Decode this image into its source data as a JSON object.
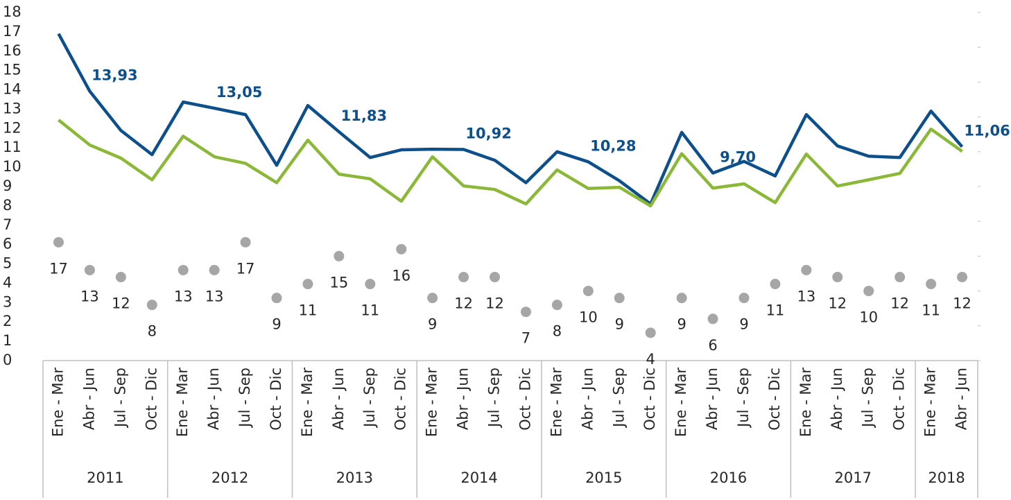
{
  "chart_data": {
    "type": "line",
    "categories": [
      "Ene - Mar",
      "Abr - Jun",
      "Jul - Sep",
      "Oct - Dic",
      "Ene - Mar",
      "Abr - Jun",
      "Jul - Sep",
      "Oct - Dic",
      "Ene - Mar",
      "Abr - Jun",
      "Jul - Sep",
      "Oct - Dic",
      "Ene - Mar",
      "Abr - Jun",
      "Jul - Sep",
      "Oct - Dic",
      "Ene - Mar",
      "Abr - Jun",
      "Jul - Sep",
      "Oct - Dic",
      "Ene - Mar",
      "Abr - Jun",
      "Jul - Sep",
      "Oct - Dic",
      "Ene - Mar",
      "Abr - Jun",
      "Jul - Sep",
      "Oct - Dic",
      "Ene - Mar",
      "Abr - Jun"
    ],
    "groups": [
      {
        "label": "2011",
        "span": 4
      },
      {
        "label": "2012",
        "span": 4
      },
      {
        "label": "2013",
        "span": 4
      },
      {
        "label": "2014",
        "span": 4
      },
      {
        "label": "2015",
        "span": 4
      },
      {
        "label": "2016",
        "span": 4
      },
      {
        "label": "2017",
        "span": 4
      },
      {
        "label": "2018",
        "span": 2
      }
    ],
    "ylim": [
      0,
      18
    ],
    "yticks": [
      0,
      1,
      2,
      3,
      4,
      5,
      6,
      7,
      8,
      9,
      10,
      11,
      12,
      13,
      14,
      15,
      16,
      17,
      18
    ],
    "y2lim": [
      0,
      50
    ],
    "y2ticks": [
      0,
      5,
      10,
      15,
      20,
      25,
      30,
      35,
      40,
      45,
      50
    ],
    "series": [
      {
        "color": "#0d4f8b",
        "mode": "line",
        "values": [
          16.9,
          13.93,
          11.9,
          10.65,
          13.37,
          13.05,
          12.72,
          10.1,
          13.19,
          11.83,
          10.5,
          10.9,
          10.93,
          10.92,
          10.36,
          9.2,
          10.8,
          10.28,
          9.3,
          8.1,
          11.8,
          9.7,
          10.3,
          9.55,
          12.72,
          11.1,
          10.57,
          10.5,
          12.9,
          11.06
        ],
        "value_labels": [
          null,
          "13,93",
          null,
          null,
          null,
          "13,05",
          null,
          null,
          null,
          "11,83",
          null,
          null,
          null,
          "10,92",
          null,
          null,
          null,
          "10,28",
          null,
          null,
          null,
          "9,70",
          null,
          null,
          null,
          null,
          null,
          null,
          null,
          "11,06"
        ]
      },
      {
        "color": "#8cb83a",
        "mode": "line",
        "values": [
          12.44,
          11.15,
          10.47,
          9.35,
          11.6,
          10.54,
          10.2,
          9.2,
          11.4,
          9.64,
          9.4,
          8.24,
          10.54,
          9.03,
          8.85,
          8.1,
          9.86,
          8.9,
          8.96,
          8.0,
          10.7,
          8.92,
          9.14,
          8.17,
          10.68,
          9.03,
          9.35,
          9.68,
          11.97,
          10.82
        ]
      },
      {
        "color": "#a6a6a6",
        "mode": "markers",
        "axis": "y2",
        "values": [
          17,
          13,
          12,
          8,
          13,
          13,
          17,
          9,
          11,
          15,
          11,
          16,
          9,
          12,
          12,
          7,
          8,
          10,
          9,
          4,
          9,
          6,
          9,
          11,
          13,
          12,
          10,
          12,
          11,
          12
        ]
      }
    ]
  }
}
